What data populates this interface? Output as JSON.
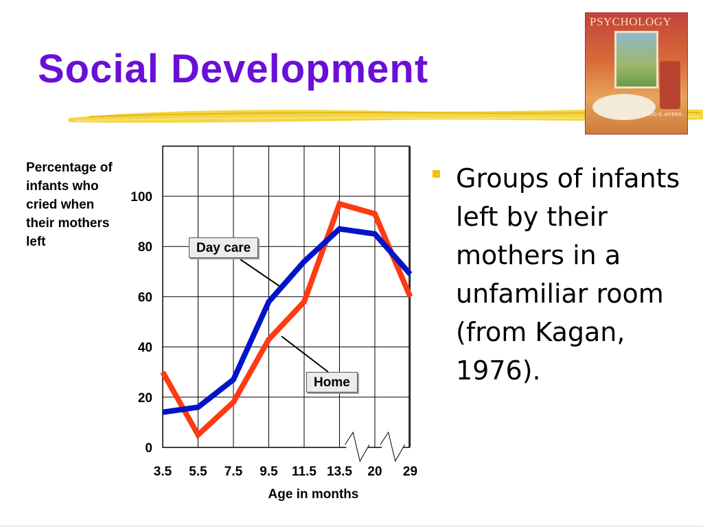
{
  "slide": {
    "title": "Social Development",
    "book_cover": {
      "title": "PSYCHOLOGY",
      "author": "DAVID G. MYERS"
    }
  },
  "bullet": {
    "text": "Groups of infants left by their mothers in a unfamiliar room (from Kagan, 1976).",
    "marker_color": "#f4c20d"
  },
  "colors": {
    "title": "#6a0fd6",
    "accent_brush": "#f3d230"
  },
  "chart_data": {
    "type": "line",
    "ylabel": "Percentage of infants who cried when their mothers left",
    "xlabel": "Age in months",
    "categories": [
      "3.5",
      "5.5",
      "7.5",
      "9.5",
      "11.5",
      "13.5",
      "20",
      "29"
    ],
    "y_ticks": [
      "0",
      "20",
      "40",
      "60",
      "80",
      "100"
    ],
    "ylim": [
      0,
      100
    ],
    "grid": true,
    "axis_breaks": [
      "13.5-20",
      "20-29"
    ],
    "series": [
      {
        "name": "Day care",
        "color": "#0014c8",
        "values": [
          14,
          16,
          27,
          58,
          74,
          87,
          85,
          69
        ]
      },
      {
        "name": "Home",
        "color": "#ff3a12",
        "values": [
          30,
          5,
          18,
          43,
          58,
          97,
          93,
          60
        ]
      }
    ]
  }
}
